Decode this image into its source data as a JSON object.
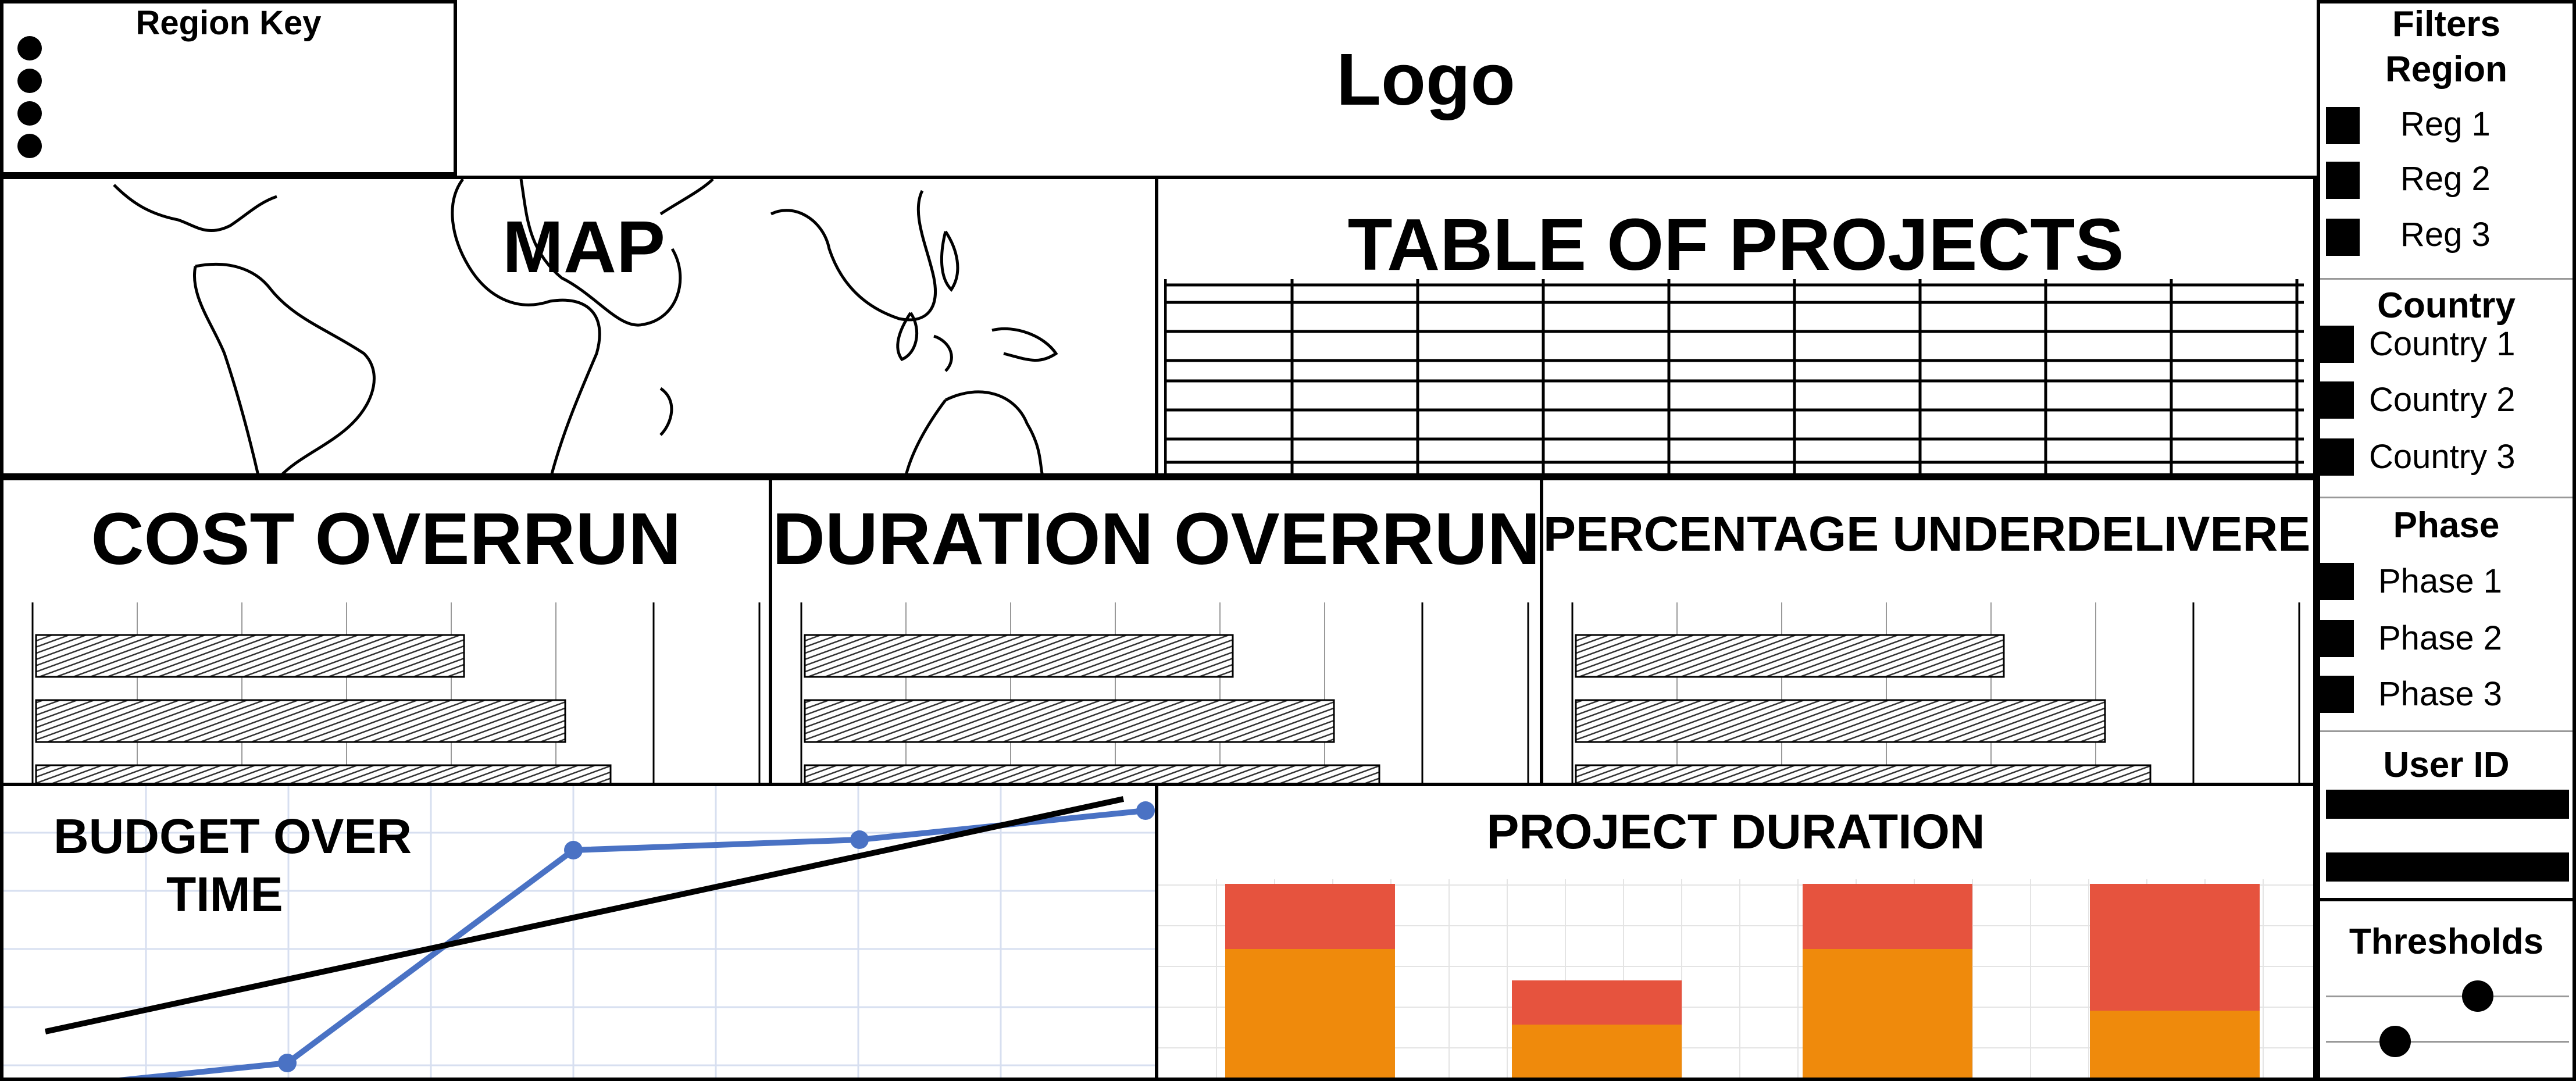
{
  "region_key": {
    "title": "Region Key",
    "dots": 4
  },
  "logo": {
    "text": "Logo"
  },
  "map": {
    "title": "MAP"
  },
  "projects_table": {
    "title": "TABLE OF PROJECTS",
    "rows": 7,
    "columns": 9
  },
  "cost_overrun": {
    "title": "COST OVERRUN"
  },
  "duration_overrun": {
    "title": "DURATION OVERRUN"
  },
  "percentage_underdelivered": {
    "title": "PERCENTAGE UNDERDELIVERED"
  },
  "budget_over_time": {
    "title_line1": "BUDGET OVER",
    "title_line2": "TIME"
  },
  "project_duration": {
    "title": "PROJECT DURATION"
  },
  "filters": {
    "title": "Filters",
    "region": {
      "label": "Region",
      "options": [
        "Reg 1",
        "Reg 2",
        "Reg 3"
      ]
    },
    "country": {
      "label": "Country",
      "options": [
        "Country 1",
        "Country 2",
        "Country 3"
      ]
    },
    "phase": {
      "label": "Phase",
      "options": [
        "Phase 1",
        "Phase 2",
        "Phase 3"
      ]
    },
    "user_id": {
      "label": "User ID"
    },
    "thresholds": {
      "label": "Thresholds",
      "slider1_value": 0.75,
      "slider2_value": 0.3
    }
  },
  "colors": {
    "line_series": "#4a72c4",
    "stack_bottom": "#ef8a0c",
    "stack_top": "#e6533e",
    "grid": "#d7dff0"
  }
}
